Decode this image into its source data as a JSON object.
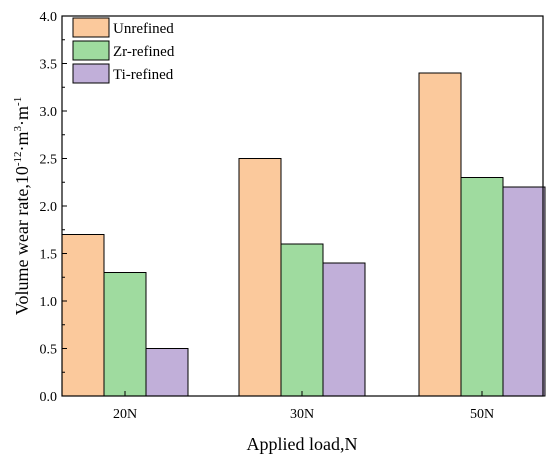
{
  "chart_data": {
    "type": "bar",
    "categories": [
      "20N",
      "30N",
      "50N"
    ],
    "series": [
      {
        "name": "Unrefined",
        "values": [
          1.7,
          2.5,
          3.4
        ],
        "color": "#FBC99C"
      },
      {
        "name": "Zr-refined",
        "values": [
          1.3,
          1.6,
          2.3
        ],
        "color": "#9FDB9F"
      },
      {
        "name": "Ti-refined",
        "values": [
          0.5,
          1.4,
          2.2
        ],
        "color": "#C1AFD9"
      }
    ],
    "xlabel": "Applied load,N",
    "ylabel_prefix": "Volume wear rate,10",
    "ylabel_exp1": "-12",
    "ylabel_mid1": "·m",
    "ylabel_exp2": "3",
    "ylabel_mid2": "·m",
    "ylabel_exp3": "-1",
    "ylim": [
      0,
      4.0
    ],
    "yticks": [
      "0.0",
      "0.5",
      "1.0",
      "1.5",
      "2.0",
      "2.5",
      "3.0",
      "3.5",
      "4.0"
    ],
    "grid": false,
    "legend_position": "top-left"
  }
}
